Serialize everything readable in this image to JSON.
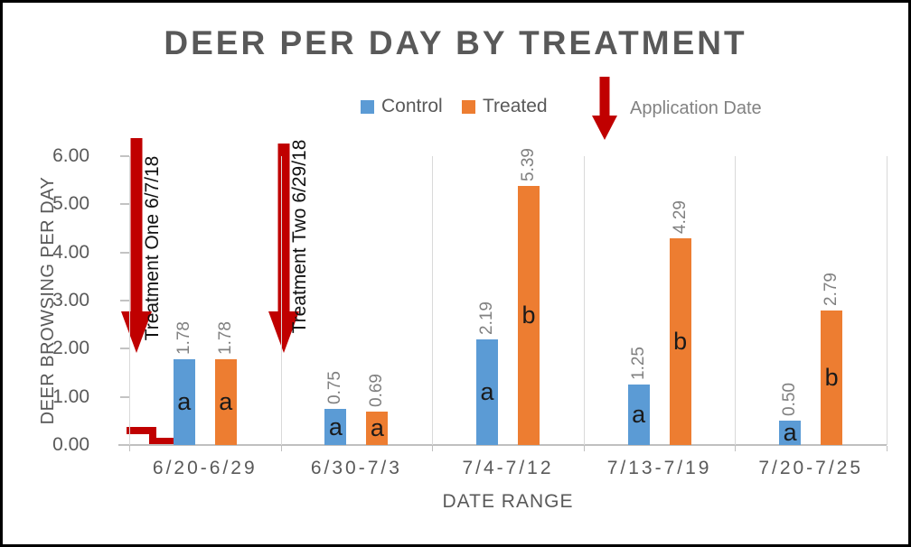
{
  "title": "DEER PER DAY BY TREATMENT",
  "legend": {
    "items": [
      {
        "label": "Control",
        "color": "#5B9BD5"
      },
      {
        "label": "Treated",
        "color": "#ED7D31"
      }
    ],
    "application_date_label": "Application Date",
    "arrow_color": "#C00000"
  },
  "axes": {
    "y_title": "DEER BROWSING PER DAY",
    "x_title": "DATE RANGE"
  },
  "annotations": {
    "treatment_one": "Treatment One 6/7/18",
    "treatment_two": "Treatment Two 6/29/18"
  },
  "chart_data": {
    "type": "bar",
    "title": "DEER PER DAY BY TREATMENT",
    "xlabel": "DATE RANGE",
    "ylabel": "DEER BROWSING PER DAY",
    "ylim": [
      0,
      6
    ],
    "ytick_step": 1.0,
    "ytick_labels": [
      "0.00",
      "1.00",
      "2.00",
      "3.00",
      "4.00",
      "5.00",
      "6.00"
    ],
    "categories": [
      "6/20-6/29",
      "6/30-7/3",
      "7/4-7/12",
      "7/13-7/19",
      "7/20-7/25"
    ],
    "series": [
      {
        "name": "Control",
        "color": "#5B9BD5",
        "values": [
          1.78,
          0.75,
          2.19,
          1.25,
          0.5
        ],
        "data_labels": [
          "1.78",
          "0.75",
          "2.19",
          "1.25",
          "0.50"
        ],
        "significance_letters": [
          "a",
          "a",
          "a",
          "a",
          "a"
        ]
      },
      {
        "name": "Treated",
        "color": "#ED7D31",
        "values": [
          1.78,
          0.69,
          5.39,
          4.29,
          2.79
        ],
        "data_labels": [
          "1.78",
          "0.69",
          "5.39",
          "4.29",
          "2.79"
        ],
        "significance_letters": [
          "a",
          "a",
          "b",
          "b",
          "b"
        ]
      }
    ],
    "legend_position": "top",
    "grid": "vertical category separators only",
    "data_label_rotation": "vertical",
    "annotations": [
      {
        "type": "down-arrow",
        "label": "Treatment One 6/7/18",
        "position": "left edge of plot, arrow spans ~6.0 down to ~2.0"
      },
      {
        "type": "down-arrow",
        "label": "Treatment Two 6/29/18",
        "position": "boundary between 6/20-6/29 and 6/30-7/3, arrow spans ~6.0 down to ~2.0"
      },
      {
        "type": "down-arrow",
        "label": "Application Date",
        "position": "legend"
      },
      {
        "type": "step-line",
        "color": "#C00000",
        "description": "small red step near y=0.3 dropping to y=0.1 at left of first Control bar"
      }
    ],
    "colors": {
      "control": "#5B9BD5",
      "treated": "#ED7D31",
      "arrow_red": "#C00000",
      "title_text": "#595959",
      "data_label_text": "#808080",
      "separator_line": "#D9D9D9"
    }
  }
}
